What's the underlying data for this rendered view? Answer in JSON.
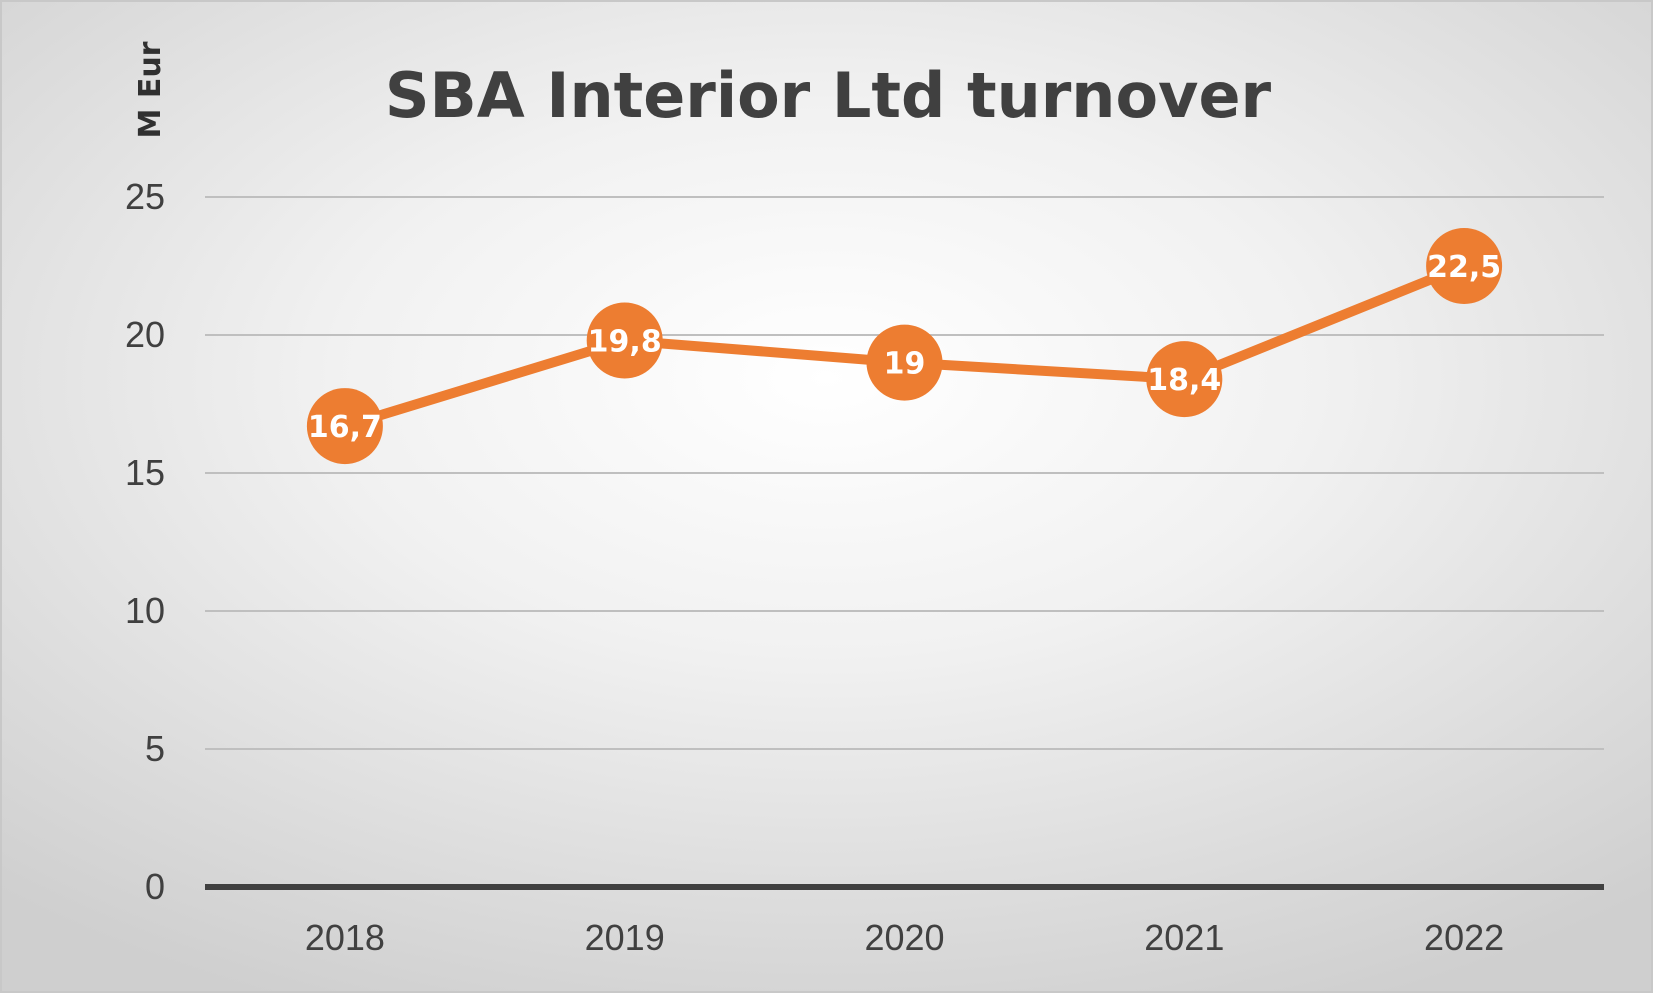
{
  "chart_data": {
    "type": "line",
    "title": "SBA Interior Ltd turnover",
    "xlabel": "",
    "ylabel": "M Eur",
    "categories": [
      "2018",
      "2019",
      "2020",
      "2021",
      "2022"
    ],
    "series": [
      {
        "values": [
          16.7,
          19.8,
          19,
          18.4,
          22.5
        ],
        "labels": [
          "16,7",
          "19,8",
          "19",
          "18,4",
          "22,5"
        ]
      }
    ],
    "ylim": [
      0,
      25
    ],
    "yticks": [
      0,
      5,
      10,
      15,
      20,
      25
    ],
    "ytick_labels": [
      "0",
      "5",
      "10",
      "15",
      "20",
      "25"
    ],
    "grid": true,
    "legend": "none",
    "colors": {
      "line": "#ED7D31",
      "marker": "#ED7D31",
      "data_label": "#FFFFFF",
      "title": "#404040",
      "gridline": "#BFBFBF",
      "baseline": "#404040"
    }
  }
}
